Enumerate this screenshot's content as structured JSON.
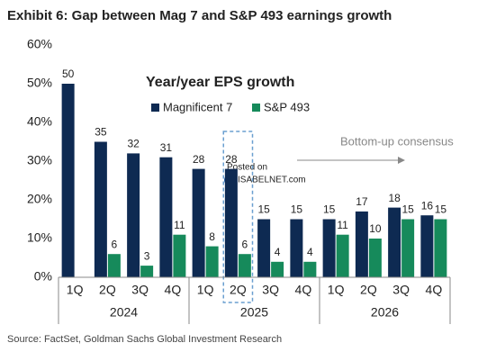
{
  "chart_data": {
    "type": "bar",
    "title": "Exhibit 6: Gap between Mag 7 and S&P 493 earnings growth",
    "categories": [
      "1Q",
      "2Q",
      "3Q",
      "4Q",
      "1Q",
      "2Q",
      "3Q",
      "4Q",
      "1Q",
      "2Q",
      "3Q",
      "4Q"
    ],
    "groups": [
      "2024",
      "2025",
      "2026"
    ],
    "series": [
      {
        "name": "Magnificent 7",
        "color": "#0e2a52",
        "values": [
          50,
          35,
          32,
          31,
          28,
          28,
          15,
          15,
          15,
          17,
          18,
          16
        ]
      },
      {
        "name": "S&P 493",
        "color": "#168a5b",
        "values": [
          null,
          6,
          3,
          11,
          8,
          6,
          4,
          4,
          11,
          10,
          15,
          15
        ]
      }
    ],
    "ylim": [
      0,
      60
    ],
    "yticks": [
      {
        "value": 0,
        "label": "0%"
      },
      {
        "value": 10,
        "label": "10%"
      },
      {
        "value": 20,
        "label": "20%"
      },
      {
        "value": 30,
        "label": "30%"
      },
      {
        "value": 40,
        "label": "40%"
      },
      {
        "value": 50,
        "label": "50%"
      },
      {
        "value": 60,
        "label": "60%"
      }
    ],
    "grid": false,
    "annotations": [
      "Year/year EPS growth",
      "Bottom-up consensus",
      "Posted on",
      "ISABELNET.com"
    ],
    "source": "Source: FactSet, Goldman Sachs Global Investment Research"
  }
}
